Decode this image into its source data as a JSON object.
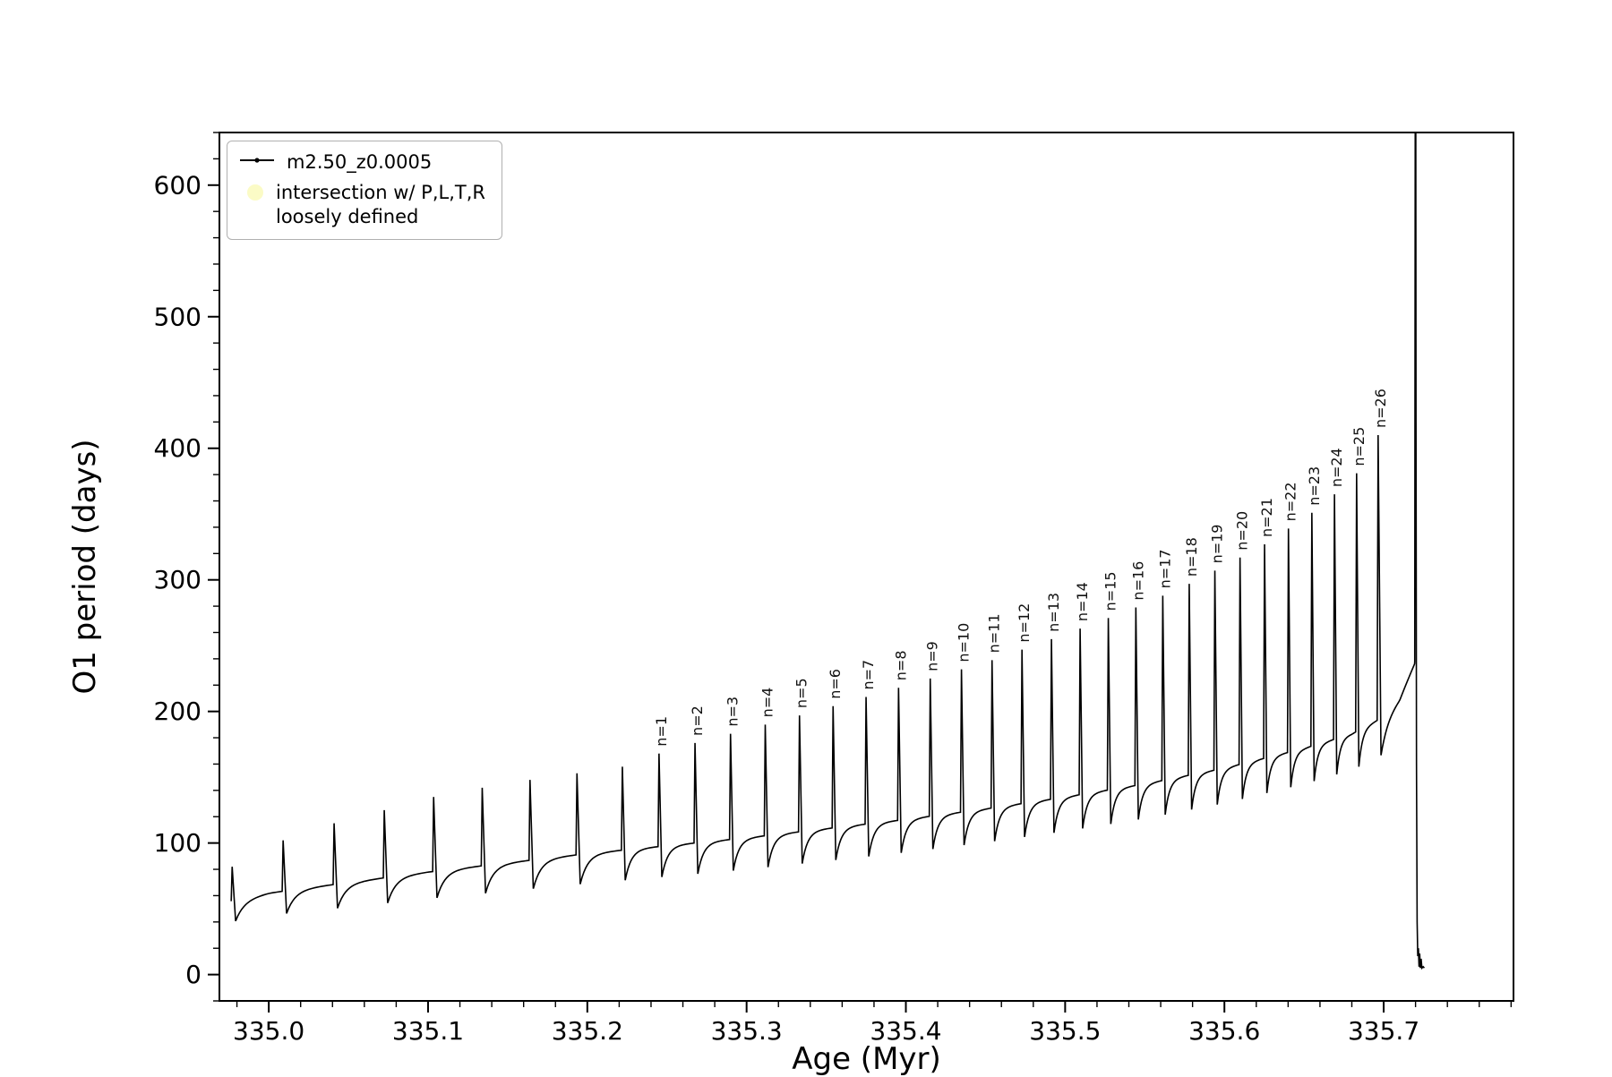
{
  "figure": {
    "background": "#ffffff"
  },
  "legend": {
    "series_label": "m2.50_z0.0005",
    "intersection_line1": "intersection w/ P,L,T,R",
    "intersection_line2": "loosely defined",
    "intersection_color": "#fbfbc6",
    "line_color": "#000000"
  },
  "chart_data": {
    "type": "line",
    "title": "",
    "series_name": "m2.50_z0.0005",
    "xlabel": "Age (Myr)",
    "ylabel": "O1 period (days)",
    "xlim": [
      334.969,
      335.7815
    ],
    "ylim": [
      -20,
      640
    ],
    "x_ticks": [
      335.0,
      335.1,
      335.2,
      335.3,
      335.4,
      335.5,
      335.6,
      335.7
    ],
    "x_minor_step": 0.02,
    "y_ticks": [
      0,
      100,
      200,
      300,
      400,
      500,
      600
    ],
    "y_minor_step": 20,
    "grid": false,
    "legend_position": "upper-left",
    "line_color": "#000000",
    "baseline_knots": [
      [
        334.974,
        55
      ],
      [
        335.0,
        62
      ],
      [
        335.05,
        70
      ],
      [
        335.1,
        78
      ],
      [
        335.15,
        85
      ],
      [
        335.2,
        92
      ],
      [
        335.25,
        98
      ],
      [
        335.3,
        104
      ],
      [
        335.35,
        111
      ],
      [
        335.4,
        118
      ],
      [
        335.45,
        126
      ],
      [
        335.5,
        135
      ],
      [
        335.55,
        145
      ],
      [
        335.6,
        157
      ],
      [
        335.65,
        172
      ],
      [
        335.68,
        183
      ],
      [
        335.7,
        196
      ],
      [
        335.71,
        210
      ],
      [
        335.715,
        224
      ],
      [
        335.72,
        238
      ]
    ],
    "dip_ratio_start": 0.65,
    "dip_ratio_end": 0.82,
    "pulses": [
      [
        334.977,
        82,
        ""
      ],
      [
        335.009,
        102,
        ""
      ],
      [
        335.041,
        115,
        ""
      ],
      [
        335.0725,
        125,
        ""
      ],
      [
        335.1035,
        135,
        ""
      ],
      [
        335.134,
        142,
        ""
      ],
      [
        335.164,
        148,
        ""
      ],
      [
        335.1935,
        153,
        ""
      ],
      [
        335.222,
        158,
        ""
      ],
      [
        335.245,
        168,
        "n=1"
      ],
      [
        335.2676,
        176,
        "n=2"
      ],
      [
        335.2899,
        183,
        "n=3"
      ],
      [
        335.3117,
        190,
        "n=4"
      ],
      [
        335.3332,
        197,
        "n=5"
      ],
      [
        335.3543,
        204,
        "n=6"
      ],
      [
        335.375,
        211,
        "n=7"
      ],
      [
        335.3954,
        218,
        "n=8"
      ],
      [
        335.4153,
        225,
        "n=9"
      ],
      [
        335.4349,
        232,
        "n=10"
      ],
      [
        335.4541,
        239,
        "n=11"
      ],
      [
        335.4729,
        247,
        "n=12"
      ],
      [
        335.4914,
        255,
        "n=13"
      ],
      [
        335.5094,
        263,
        "n=14"
      ],
      [
        335.5271,
        271,
        "n=15"
      ],
      [
        335.5444,
        279,
        "n=16"
      ],
      [
        335.5613,
        288,
        "n=17"
      ],
      [
        335.5779,
        297,
        "n=18"
      ],
      [
        335.594,
        307,
        "n=19"
      ],
      [
        335.6098,
        317,
        "n=20"
      ],
      [
        335.6252,
        327,
        "n=21"
      ],
      [
        335.6402,
        339,
        "n=22"
      ],
      [
        335.6549,
        351,
        "n=23"
      ],
      [
        335.6691,
        365,
        "n=24"
      ],
      [
        335.683,
        381,
        "n=25"
      ],
      [
        335.6965,
        410,
        "n=26"
      ]
    ],
    "final_pulse": {
      "x": 335.72,
      "peak": 900
    },
    "tail": [
      [
        335.7203,
        420
      ],
      [
        335.7206,
        160
      ],
      [
        335.721,
        40
      ],
      [
        335.7214,
        14
      ],
      [
        335.7218,
        20
      ],
      [
        335.7222,
        6
      ],
      [
        335.7226,
        16
      ],
      [
        335.723,
        5
      ],
      [
        335.7235,
        12
      ],
      [
        335.724,
        5
      ],
      [
        335.7248,
        6
      ],
      [
        335.7255,
        5
      ]
    ]
  }
}
